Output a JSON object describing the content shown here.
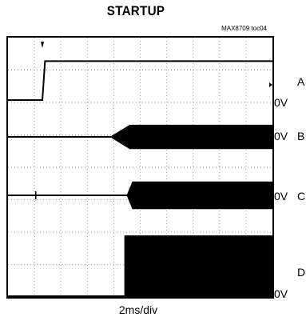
{
  "header": {
    "title": "STARTUP",
    "figure_id": "MAX8709 toc04"
  },
  "chart_data": {
    "type": "line",
    "title": "STARTUP",
    "xlabel": "2ms/div",
    "time_per_div_ms": 2,
    "divisions": {
      "x": 10,
      "y": 8
    },
    "grid": true,
    "trigger_marker_div": 1.3,
    "channels": [
      {
        "name": "A",
        "zero_label": "0V",
        "segments": [
          {
            "t_div": 0.0,
            "level_div": 0.0
          },
          {
            "t_div": 1.3,
            "level_div": 0.0
          },
          {
            "t_div": 1.4,
            "level_div": 1.2
          },
          {
            "t_div": 10.0,
            "level_div": 1.2
          }
        ]
      },
      {
        "name": "B",
        "zero_label": "0V",
        "burst_start_div": 3.9,
        "ramp_end_div": 4.6,
        "burst_amplitude_div": 0.75
      },
      {
        "name": "C",
        "zero_label": "0V",
        "burst_start_div": 4.5,
        "ramp_end_div": 4.7,
        "burst_amplitude_div": 0.85
      },
      {
        "name": "D",
        "zero_label": "0V",
        "step_div": 4.4,
        "high_level_div": 1.9
      }
    ]
  }
}
